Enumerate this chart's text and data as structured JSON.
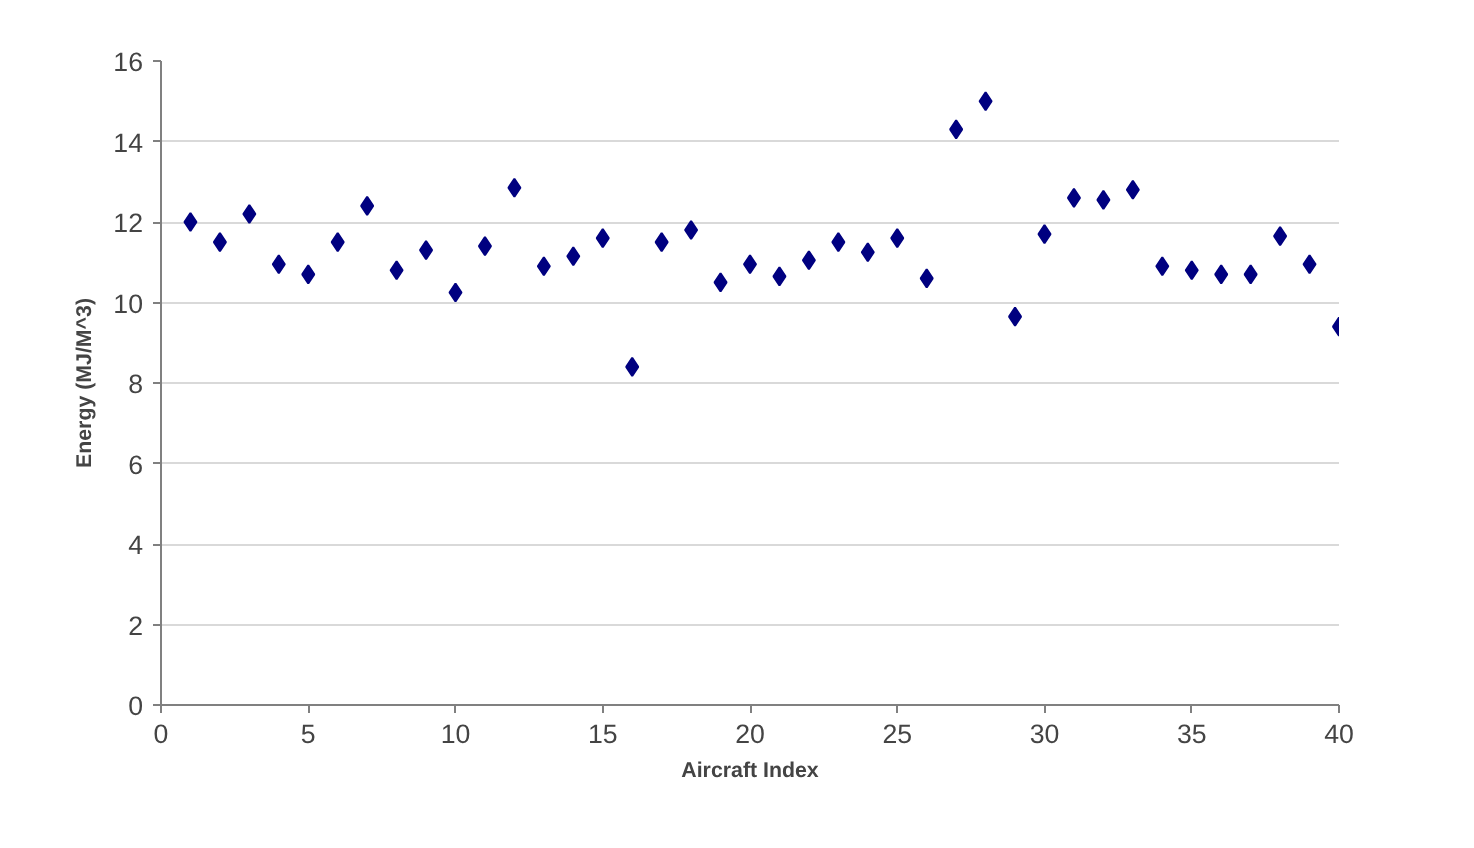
{
  "chart_data": {
    "type": "scatter",
    "xlabel": "Aircraft Index",
    "ylabel": "Energy (MJ/M^3)",
    "x": [
      1,
      2,
      3,
      4,
      5,
      6,
      7,
      8,
      9,
      10,
      11,
      12,
      13,
      14,
      15,
      16,
      17,
      18,
      19,
      20,
      21,
      22,
      23,
      24,
      25,
      26,
      27,
      28,
      29,
      30,
      31,
      32,
      33,
      34,
      35,
      36,
      37,
      38,
      39,
      40
    ],
    "series": [
      {
        "color": "#000080",
        "values": [
          12.0,
          11.5,
          12.2,
          10.95,
          10.7,
          11.5,
          12.4,
          10.8,
          11.3,
          10.25,
          11.4,
          12.85,
          10.9,
          11.15,
          11.6,
          8.4,
          11.5,
          11.8,
          10.5,
          10.95,
          10.65,
          11.05,
          11.5,
          11.25,
          11.6,
          10.6,
          14.3,
          15.0,
          9.65,
          11.7,
          12.6,
          12.55,
          12.8,
          10.9,
          10.8,
          10.7,
          10.7,
          11.65,
          10.95,
          9.4
        ]
      }
    ],
    "xlim": [
      0,
      40
    ],
    "xticks": [
      0,
      5,
      10,
      15,
      20,
      25,
      30,
      35,
      40
    ],
    "ylim": [
      0,
      16
    ],
    "yticks": [
      0,
      2,
      4,
      6,
      8,
      10,
      12,
      14,
      16
    ],
    "grid": "y",
    "marker": "diamond"
  }
}
